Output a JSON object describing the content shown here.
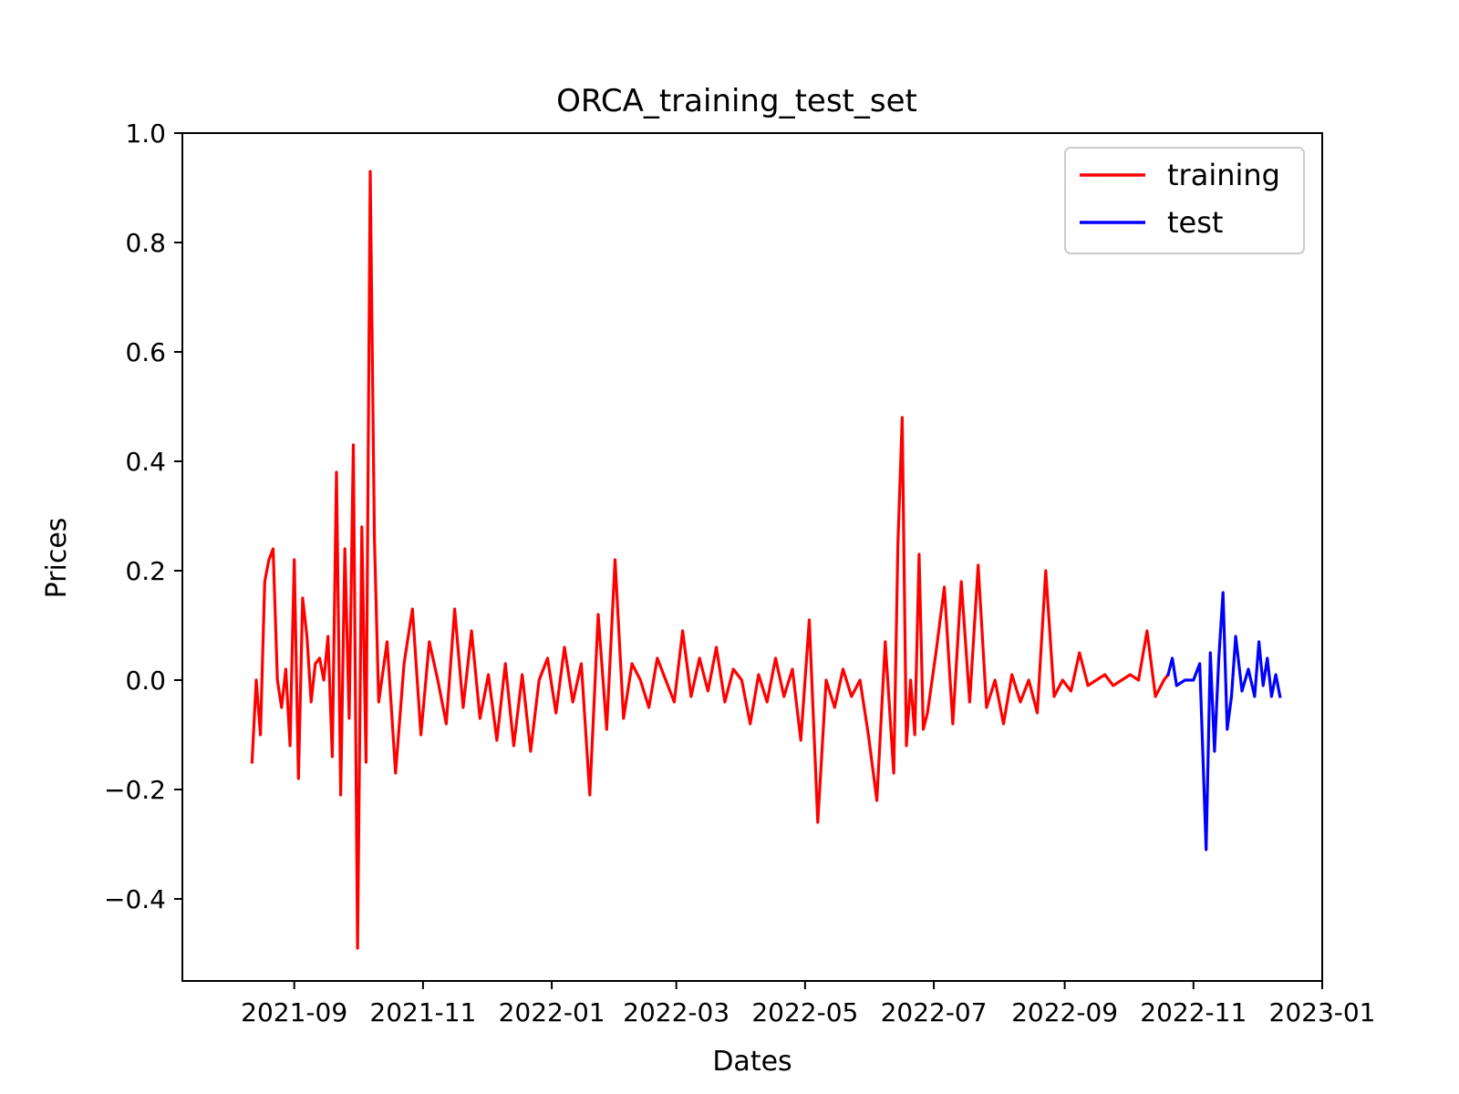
{
  "chart_data": {
    "type": "line",
    "title": "ORCA_training_test_set",
    "xlabel": "Dates",
    "ylabel": "Prices",
    "x_axis_type": "date",
    "xlim": [
      "2021-07-10",
      "2023-01-01"
    ],
    "ylim": [
      -0.55,
      1.0
    ],
    "x_ticks": [
      "2021-09",
      "2021-11",
      "2022-01",
      "2022-03",
      "2022-05",
      "2022-07",
      "2022-09",
      "2022-11",
      "2023-01"
    ],
    "y_ticks": [
      -0.4,
      -0.2,
      0.0,
      0.2,
      0.4,
      0.6,
      0.8,
      1.0
    ],
    "y_tick_labels": [
      "−0.4",
      "−0.2",
      "0.0",
      "0.2",
      "0.4",
      "0.6",
      "0.8",
      "1.0"
    ],
    "grid": false,
    "legend_position": "top-right",
    "series": [
      {
        "name": "training",
        "color": "#ff0000",
        "x": [
          "2021-08-12",
          "2021-08-14",
          "2021-08-16",
          "2021-08-18",
          "2021-08-20",
          "2021-08-22",
          "2021-08-24",
          "2021-08-26",
          "2021-08-28",
          "2021-08-30",
          "2021-09-01",
          "2021-09-03",
          "2021-09-05",
          "2021-09-07",
          "2021-09-09",
          "2021-09-11",
          "2021-09-13",
          "2021-09-15",
          "2021-09-17",
          "2021-09-19",
          "2021-09-21",
          "2021-09-23",
          "2021-09-25",
          "2021-09-27",
          "2021-09-29",
          "2021-10-01",
          "2021-10-03",
          "2021-10-05",
          "2021-10-07",
          "2021-10-09",
          "2021-10-11",
          "2021-10-15",
          "2021-10-19",
          "2021-10-23",
          "2021-10-27",
          "2021-10-31",
          "2021-11-04",
          "2021-11-08",
          "2021-11-12",
          "2021-11-16",
          "2021-11-20",
          "2021-11-24",
          "2021-11-28",
          "2021-12-02",
          "2021-12-06",
          "2021-12-10",
          "2021-12-14",
          "2021-12-18",
          "2021-12-22",
          "2021-12-26",
          "2021-12-30",
          "2022-01-03",
          "2022-01-07",
          "2022-01-11",
          "2022-01-15",
          "2022-01-19",
          "2022-01-23",
          "2022-01-27",
          "2022-01-31",
          "2022-02-04",
          "2022-02-08",
          "2022-02-12",
          "2022-02-16",
          "2022-02-20",
          "2022-02-24",
          "2022-02-28",
          "2022-03-04",
          "2022-03-08",
          "2022-03-12",
          "2022-03-16",
          "2022-03-20",
          "2022-03-24",
          "2022-03-28",
          "2022-04-01",
          "2022-04-05",
          "2022-04-09",
          "2022-04-13",
          "2022-04-17",
          "2022-04-21",
          "2022-04-25",
          "2022-04-29",
          "2022-05-03",
          "2022-05-07",
          "2022-05-11",
          "2022-05-15",
          "2022-05-19",
          "2022-05-23",
          "2022-05-27",
          "2022-05-31",
          "2022-06-04",
          "2022-06-08",
          "2022-06-12",
          "2022-06-14",
          "2022-06-16",
          "2022-06-18",
          "2022-06-20",
          "2022-06-22",
          "2022-06-24",
          "2022-06-26",
          "2022-06-28",
          "2022-07-02",
          "2022-07-06",
          "2022-07-10",
          "2022-07-14",
          "2022-07-18",
          "2022-07-22",
          "2022-07-26",
          "2022-07-30",
          "2022-08-03",
          "2022-08-07",
          "2022-08-11",
          "2022-08-15",
          "2022-08-19",
          "2022-08-23",
          "2022-08-27",
          "2022-08-31",
          "2022-09-04",
          "2022-09-08",
          "2022-09-12",
          "2022-09-16",
          "2022-09-20",
          "2022-09-24",
          "2022-09-28",
          "2022-10-02",
          "2022-10-06",
          "2022-10-10",
          "2022-10-14",
          "2022-10-18",
          "2022-10-20"
        ],
        "y": [
          -0.15,
          0.0,
          -0.1,
          0.18,
          0.22,
          0.24,
          0.0,
          -0.05,
          0.02,
          -0.12,
          0.22,
          -0.18,
          0.15,
          0.08,
          -0.04,
          0.03,
          0.04,
          0.0,
          0.08,
          -0.14,
          0.38,
          -0.21,
          0.24,
          -0.07,
          0.43,
          -0.49,
          0.28,
          -0.15,
          0.93,
          0.26,
          -0.04,
          0.07,
          -0.17,
          0.03,
          0.13,
          -0.1,
          0.07,
          0.0,
          -0.08,
          0.13,
          -0.05,
          0.09,
          -0.07,
          0.01,
          -0.11,
          0.03,
          -0.12,
          0.01,
          -0.13,
          0.0,
          0.04,
          -0.06,
          0.06,
          -0.04,
          0.03,
          -0.21,
          0.12,
          -0.09,
          0.22,
          -0.07,
          0.03,
          0.0,
          -0.05,
          0.04,
          0.0,
          -0.04,
          0.09,
          -0.03,
          0.04,
          -0.02,
          0.06,
          -0.04,
          0.02,
          0.0,
          -0.08,
          0.01,
          -0.04,
          0.04,
          -0.03,
          0.02,
          -0.11,
          0.11,
          -0.26,
          0.0,
          -0.05,
          0.02,
          -0.03,
          0.0,
          -0.1,
          -0.22,
          0.07,
          -0.17,
          0.25,
          0.48,
          -0.12,
          0.0,
          -0.1,
          0.23,
          -0.09,
          -0.06,
          0.05,
          0.17,
          -0.08,
          0.18,
          -0.04,
          0.21,
          -0.05,
          0.0,
          -0.08,
          0.01,
          -0.04,
          0.0,
          -0.06,
          0.2,
          -0.03,
          0.0,
          -0.02,
          0.05,
          -0.01,
          0.0,
          0.01,
          -0.01,
          0.0,
          0.01,
          0.0,
          0.09,
          -0.03,
          0.0,
          0.01
        ]
      },
      {
        "name": "test",
        "color": "#0000ff",
        "x": [
          "2022-10-20",
          "2022-10-22",
          "2022-10-24",
          "2022-10-28",
          "2022-11-01",
          "2022-11-04",
          "2022-11-07",
          "2022-11-09",
          "2022-11-11",
          "2022-11-13",
          "2022-11-15",
          "2022-11-17",
          "2022-11-19",
          "2022-11-21",
          "2022-11-24",
          "2022-11-27",
          "2022-11-30",
          "2022-12-02",
          "2022-12-04",
          "2022-12-06",
          "2022-12-08",
          "2022-12-10",
          "2022-12-12"
        ],
        "y": [
          0.01,
          0.04,
          -0.01,
          0.0,
          0.0,
          0.03,
          -0.31,
          0.05,
          -0.13,
          0.04,
          0.16,
          -0.09,
          -0.03,
          0.08,
          -0.02,
          0.02,
          -0.03,
          0.07,
          -0.01,
          0.04,
          -0.03,
          0.01,
          -0.03
        ]
      }
    ]
  }
}
